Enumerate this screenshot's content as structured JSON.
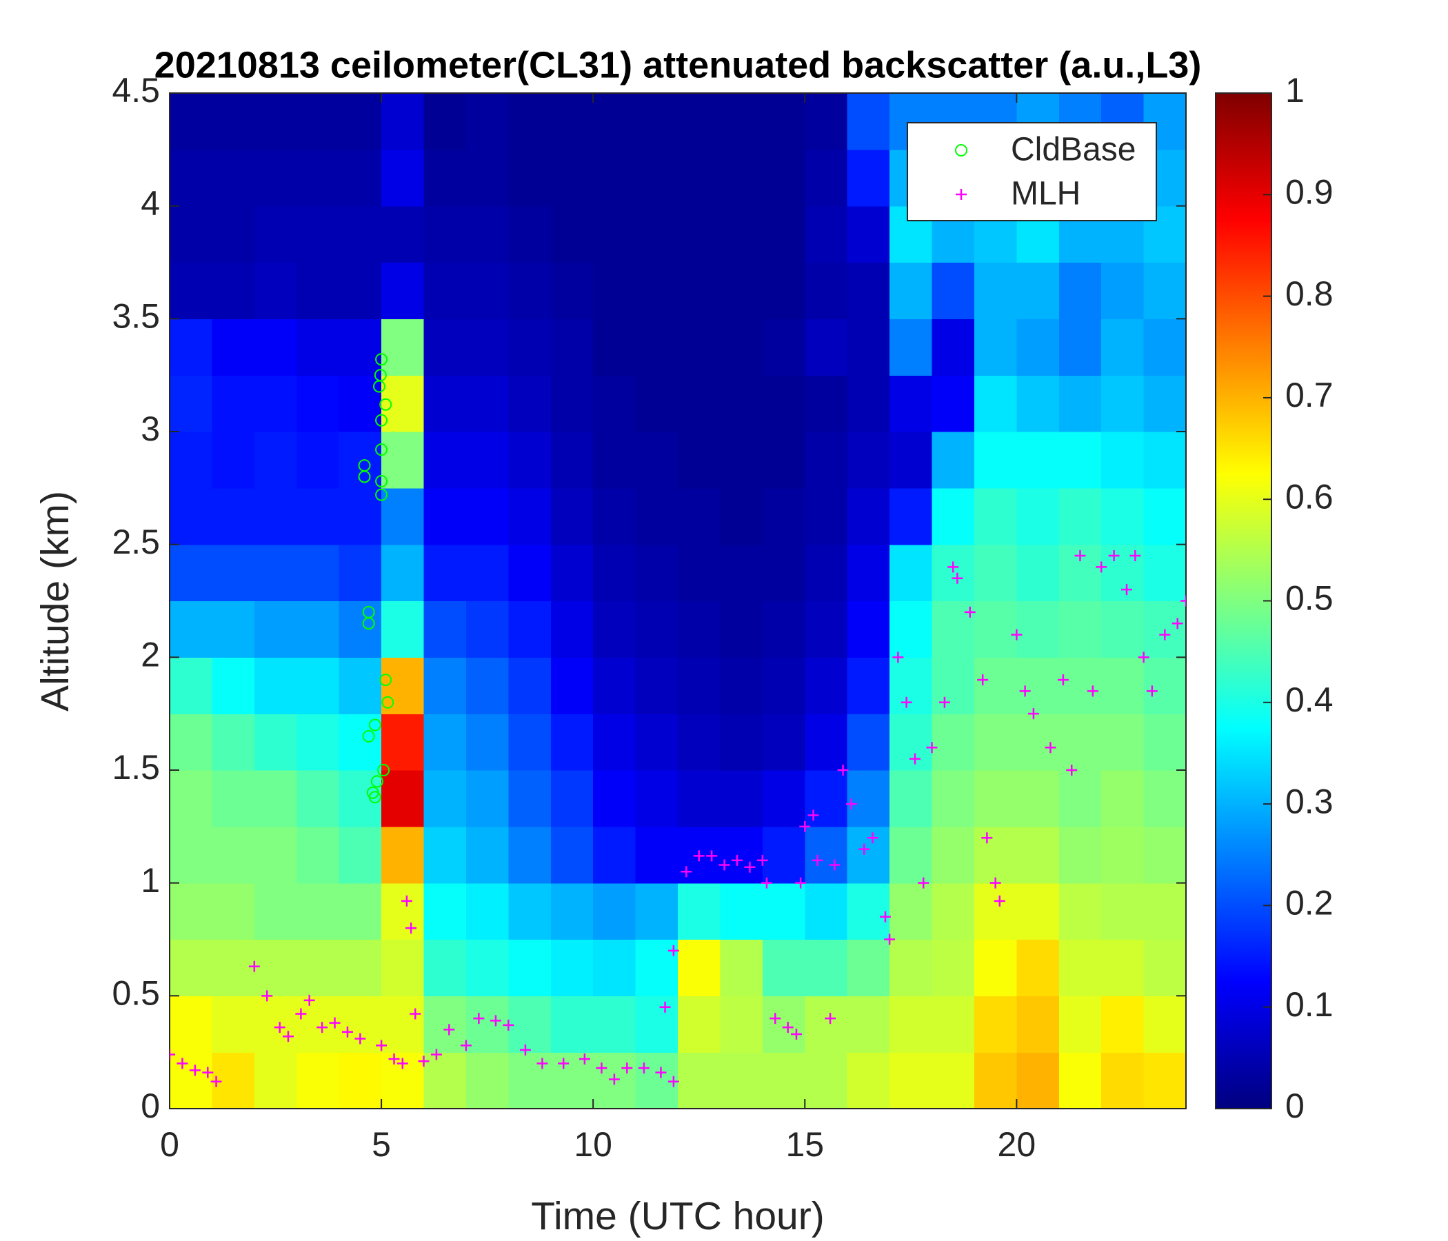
{
  "chart_data": {
    "type": "heatmap",
    "title": "20210813 ceilometer(CL31) attenuated backscatter (a.u.,L3)",
    "x_label": "Time (UTC hour)",
    "y_label": "Altitude (km)",
    "xlim": [
      0,
      24
    ],
    "xticks": [
      0,
      5,
      10,
      15,
      20
    ],
    "ylim": [
      0,
      4.5
    ],
    "yticks": [
      0,
      0.5,
      1,
      1.5,
      2,
      2.5,
      3,
      3.5,
      4,
      4.5
    ],
    "clim": [
      0,
      1
    ],
    "cticks": [
      0,
      0.1,
      0.2,
      0.3,
      0.4,
      0.5,
      0.6,
      0.7,
      0.8,
      0.9,
      1
    ],
    "colormap": "jet",
    "legend": "upper right",
    "x": [
      0.5,
      1.5,
      2.5,
      3.5,
      4.5,
      5.5,
      6.5,
      7.5,
      8.5,
      9.5,
      10.5,
      11.5,
      12.5,
      13.5,
      14.5,
      15.5,
      16.5,
      17.5,
      18.5,
      19.5,
      20.5,
      21.5,
      22.5,
      23.5
    ],
    "y": [
      0.125,
      0.375,
      0.625,
      0.875,
      1.125,
      1.375,
      1.625,
      1.875,
      2.125,
      2.375,
      2.625,
      2.875,
      3.125,
      3.375,
      3.625,
      3.875,
      4.125,
      4.375
    ],
    "z": [
      [
        0.62,
        0.65,
        0.6,
        0.62,
        0.63,
        0.62,
        0.55,
        0.52,
        0.5,
        0.5,
        0.5,
        0.48,
        0.55,
        0.55,
        0.55,
        0.55,
        0.58,
        0.6,
        0.6,
        0.68,
        0.7,
        0.62,
        0.66,
        0.65
      ],
      [
        0.62,
        0.6,
        0.6,
        0.6,
        0.6,
        0.6,
        0.5,
        0.48,
        0.45,
        0.42,
        0.42,
        0.4,
        0.58,
        0.56,
        0.52,
        0.55,
        0.55,
        0.58,
        0.58,
        0.66,
        0.68,
        0.6,
        0.64,
        0.6
      ],
      [
        0.55,
        0.55,
        0.55,
        0.55,
        0.55,
        0.58,
        0.42,
        0.4,
        0.38,
        0.36,
        0.35,
        0.38,
        0.62,
        0.55,
        0.45,
        0.45,
        0.48,
        0.55,
        0.56,
        0.62,
        0.66,
        0.58,
        0.58,
        0.56
      ],
      [
        0.52,
        0.52,
        0.5,
        0.5,
        0.5,
        0.6,
        0.38,
        0.36,
        0.32,
        0.3,
        0.28,
        0.3,
        0.4,
        0.38,
        0.38,
        0.35,
        0.4,
        0.52,
        0.55,
        0.6,
        0.6,
        0.56,
        0.55,
        0.55
      ],
      [
        0.5,
        0.5,
        0.5,
        0.48,
        0.45,
        0.7,
        0.33,
        0.3,
        0.25,
        0.2,
        0.15,
        0.12,
        0.12,
        0.12,
        0.15,
        0.22,
        0.3,
        0.48,
        0.52,
        0.55,
        0.55,
        0.52,
        0.53,
        0.52
      ],
      [
        0.5,
        0.48,
        0.48,
        0.45,
        0.42,
        0.9,
        0.3,
        0.28,
        0.22,
        0.18,
        0.12,
        0.1,
        0.08,
        0.08,
        0.1,
        0.15,
        0.25,
        0.45,
        0.5,
        0.52,
        0.52,
        0.5,
        0.52,
        0.5
      ],
      [
        0.48,
        0.45,
        0.42,
        0.4,
        0.38,
        0.85,
        0.28,
        0.25,
        0.2,
        0.15,
        0.1,
        0.08,
        0.06,
        0.05,
        0.06,
        0.1,
        0.2,
        0.42,
        0.48,
        0.5,
        0.5,
        0.5,
        0.5,
        0.48
      ],
      [
        0.42,
        0.38,
        0.35,
        0.35,
        0.32,
        0.7,
        0.25,
        0.22,
        0.18,
        0.12,
        0.08,
        0.06,
        0.05,
        0.04,
        0.05,
        0.08,
        0.15,
        0.4,
        0.45,
        0.48,
        0.48,
        0.48,
        0.48,
        0.46
      ],
      [
        0.3,
        0.3,
        0.28,
        0.28,
        0.25,
        0.4,
        0.2,
        0.18,
        0.15,
        0.1,
        0.06,
        0.05,
        0.04,
        0.03,
        0.04,
        0.06,
        0.12,
        0.38,
        0.45,
        0.46,
        0.45,
        0.46,
        0.45,
        0.44
      ],
      [
        0.2,
        0.2,
        0.2,
        0.2,
        0.18,
        0.3,
        0.15,
        0.15,
        0.12,
        0.08,
        0.05,
        0.04,
        0.03,
        0.03,
        0.03,
        0.05,
        0.1,
        0.35,
        0.42,
        0.44,
        0.42,
        0.44,
        0.42,
        0.4
      ],
      [
        0.15,
        0.15,
        0.15,
        0.15,
        0.15,
        0.25,
        0.12,
        0.12,
        0.1,
        0.06,
        0.04,
        0.03,
        0.03,
        0.02,
        0.03,
        0.04,
        0.08,
        0.15,
        0.38,
        0.42,
        0.4,
        0.42,
        0.4,
        0.38
      ],
      [
        0.15,
        0.14,
        0.15,
        0.14,
        0.15,
        0.5,
        0.1,
        0.1,
        0.08,
        0.05,
        0.03,
        0.03,
        0.02,
        0.02,
        0.02,
        0.04,
        0.06,
        0.08,
        0.3,
        0.38,
        0.38,
        0.38,
        0.36,
        0.35
      ],
      [
        0.16,
        0.14,
        0.14,
        0.13,
        0.12,
        0.6,
        0.08,
        0.08,
        0.06,
        0.04,
        0.03,
        0.02,
        0.02,
        0.02,
        0.02,
        0.03,
        0.05,
        0.1,
        0.12,
        0.35,
        0.32,
        0.3,
        0.32,
        0.3
      ],
      [
        0.15,
        0.12,
        0.12,
        0.1,
        0.1,
        0.5,
        0.06,
        0.06,
        0.05,
        0.04,
        0.02,
        0.02,
        0.02,
        0.02,
        0.03,
        0.06,
        0.05,
        0.25,
        0.1,
        0.3,
        0.28,
        0.25,
        0.3,
        0.28
      ],
      [
        0.05,
        0.05,
        0.06,
        0.05,
        0.05,
        0.1,
        0.05,
        0.05,
        0.04,
        0.03,
        0.02,
        0.02,
        0.02,
        0.02,
        0.02,
        0.04,
        0.05,
        0.3,
        0.2,
        0.3,
        0.3,
        0.25,
        0.28,
        0.3
      ],
      [
        0.04,
        0.04,
        0.05,
        0.05,
        0.05,
        0.05,
        0.04,
        0.04,
        0.03,
        0.02,
        0.02,
        0.02,
        0.02,
        0.02,
        0.02,
        0.05,
        0.08,
        0.35,
        0.3,
        0.32,
        0.35,
        0.3,
        0.3,
        0.32
      ],
      [
        0.04,
        0.04,
        0.04,
        0.04,
        0.04,
        0.1,
        0.03,
        0.03,
        0.02,
        0.02,
        0.02,
        0.02,
        0.02,
        0.02,
        0.02,
        0.04,
        0.15,
        0.3,
        0.3,
        0.28,
        0.3,
        0.28,
        0.25,
        0.3
      ],
      [
        0.03,
        0.03,
        0.03,
        0.03,
        0.03,
        0.08,
        0.02,
        0.03,
        0.02,
        0.02,
        0.02,
        0.02,
        0.02,
        0.02,
        0.02,
        0.03,
        0.2,
        0.25,
        0.25,
        0.25,
        0.28,
        0.25,
        0.22,
        0.28
      ]
    ],
    "series": [
      {
        "name": "CldBase",
        "color": "#00ff00",
        "marker": "circle",
        "x": [
          4.6,
          4.6,
          4.7,
          4.7,
          4.7,
          4.8,
          4.85,
          4.9,
          5,
          4.98,
          4.95,
          5,
          5,
          5,
          5,
          5.1,
          5.1,
          5.15,
          5.05,
          4.85
        ],
        "y": [
          2.85,
          2.8,
          2.2,
          2.15,
          1.65,
          1.4,
          1.7,
          1.45,
          3.32,
          3.25,
          3.2,
          3.05,
          2.92,
          2.78,
          2.72,
          3.12,
          1.9,
          1.8,
          1.5,
          1.38
        ]
      },
      {
        "name": "MLH",
        "color": "#ff00ff",
        "marker": "plus",
        "x": [
          0,
          0.3,
          0.6,
          0.9,
          1.1,
          2,
          2.3,
          2.6,
          2.8,
          3.1,
          3.3,
          3.6,
          3.9,
          4.2,
          4.5,
          5,
          5.3,
          5.5,
          5.6,
          5.7,
          5.8,
          6,
          6.3,
          6.6,
          7,
          7.3,
          7.7,
          8,
          8.4,
          8.8,
          9.3,
          9.8,
          10.2,
          10.5,
          10.8,
          11.2,
          11.6,
          11.9,
          11.7,
          11.9,
          12.2,
          12.5,
          12.8,
          13.1,
          13.4,
          13.7,
          14,
          14.1,
          14.3,
          14.6,
          14.8,
          14.9,
          15,
          15.2,
          15.3,
          15.6,
          15.7,
          15.9,
          16.1,
          16.4,
          16.6,
          16.9,
          17,
          17.2,
          17.4,
          17.6,
          17.8,
          18,
          18.3,
          18.5,
          18.6,
          18.9,
          19.2,
          19.3,
          19.5,
          19.6,
          20,
          20.2,
          20.4,
          20.8,
          21.1,
          21.3,
          21.5,
          21.8,
          22,
          22.3,
          22.6,
          22.8,
          23,
          23.2,
          23.5,
          23.8,
          24
        ],
        "y": [
          0.24,
          0.2,
          0.17,
          0.16,
          0.12,
          0.63,
          0.5,
          0.36,
          0.32,
          0.42,
          0.48,
          0.36,
          0.38,
          0.34,
          0.31,
          0.28,
          0.22,
          0.2,
          0.92,
          0.8,
          0.42,
          0.21,
          0.24,
          0.35,
          0.28,
          0.4,
          0.39,
          0.37,
          0.26,
          0.2,
          0.2,
          0.22,
          0.18,
          0.13,
          0.18,
          0.18,
          0.16,
          0.12,
          0.45,
          0.7,
          1.05,
          1.12,
          1.12,
          1.08,
          1.1,
          1.07,
          1.1,
          1,
          0.4,
          0.36,
          0.33,
          1,
          1.25,
          1.3,
          1.1,
          0.4,
          1.08,
          1.5,
          1.35,
          1.15,
          1.2,
          0.85,
          0.75,
          2,
          1.8,
          1.55,
          1,
          1.6,
          1.8,
          2.4,
          2.35,
          2.2,
          1.9,
          1.2,
          1,
          0.92,
          2.1,
          1.85,
          1.75,
          1.6,
          1.9,
          1.5,
          2.45,
          1.85,
          2.4,
          2.45,
          2.3,
          2.45,
          2,
          1.85,
          2.1,
          2.15,
          2.25
        ]
      }
    ]
  }
}
